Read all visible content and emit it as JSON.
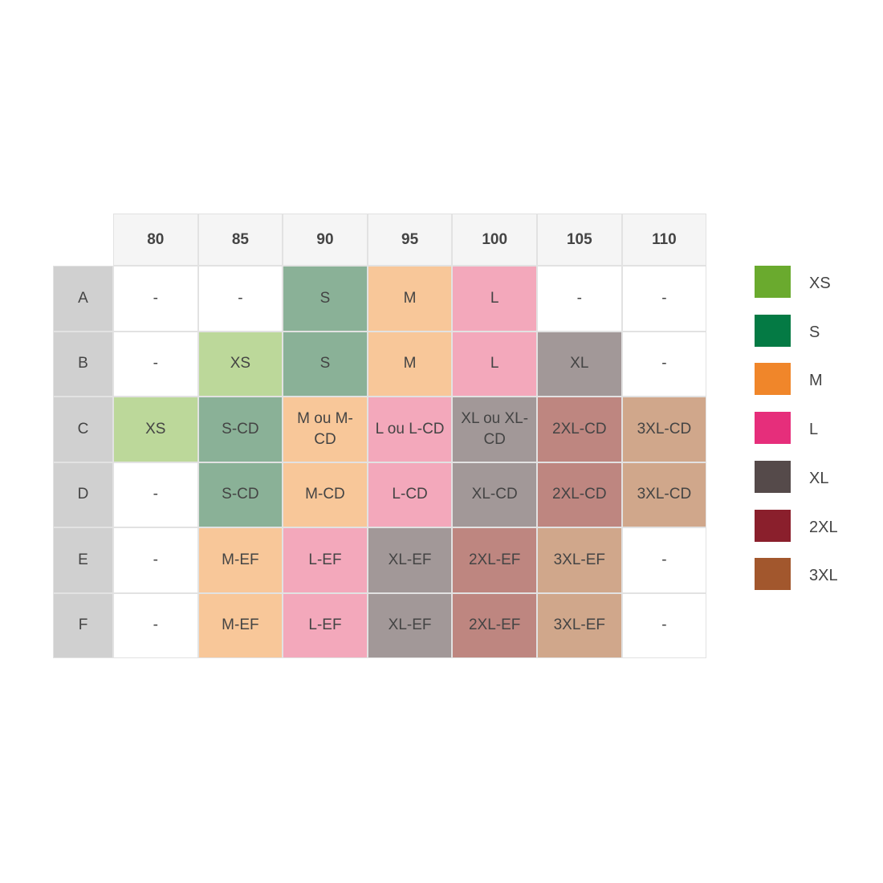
{
  "table": {
    "columns": [
      "80",
      "85",
      "90",
      "95",
      "100",
      "105",
      "110"
    ],
    "rows": [
      {
        "label": "A",
        "cells": [
          {
            "text": "-",
            "color": "#ffffff"
          },
          {
            "text": "-",
            "color": "#ffffff"
          },
          {
            "text": "S",
            "color": "#8ab197"
          },
          {
            "text": "M",
            "color": "#f8c799"
          },
          {
            "text": "L",
            "color": "#f3a8bb"
          },
          {
            "text": "-",
            "color": "#ffffff"
          },
          {
            "text": "-",
            "color": "#ffffff"
          }
        ]
      },
      {
        "label": "B",
        "cells": [
          {
            "text": "-",
            "color": "#ffffff"
          },
          {
            "text": "XS",
            "color": "#bcd89a"
          },
          {
            "text": "S",
            "color": "#8ab197"
          },
          {
            "text": "M",
            "color": "#f8c799"
          },
          {
            "text": "L",
            "color": "#f3a8bb"
          },
          {
            "text": "XL",
            "color": "#a29898"
          },
          {
            "text": "-",
            "color": "#ffffff"
          }
        ]
      },
      {
        "label": "C",
        "cells": [
          {
            "text": "XS",
            "color": "#bcd89a"
          },
          {
            "text": "S-CD",
            "color": "#8ab197"
          },
          {
            "text": "M ou M-CD",
            "color": "#f8c799"
          },
          {
            "text": "L ou L-CD",
            "color": "#f3a8bb"
          },
          {
            "text": "XL ou XL-CD",
            "color": "#a29898"
          },
          {
            "text": "2XL-CD",
            "color": "#be8680"
          },
          {
            "text": "3XL-CD",
            "color": "#d0a78b"
          }
        ]
      },
      {
        "label": "D",
        "cells": [
          {
            "text": "-",
            "color": "#ffffff"
          },
          {
            "text": "S-CD",
            "color": "#8ab197"
          },
          {
            "text": "M-CD",
            "color": "#f8c799"
          },
          {
            "text": "L-CD",
            "color": "#f3a8bb"
          },
          {
            "text": "XL-CD",
            "color": "#a29898"
          },
          {
            "text": "2XL-CD",
            "color": "#be8680"
          },
          {
            "text": "3XL-CD",
            "color": "#d0a78b"
          }
        ]
      },
      {
        "label": "E",
        "cells": [
          {
            "text": "-",
            "color": "#ffffff"
          },
          {
            "text": "M-EF",
            "color": "#f8c799"
          },
          {
            "text": "L-EF",
            "color": "#f3a8bb"
          },
          {
            "text": "XL-EF",
            "color": "#a29898"
          },
          {
            "text": "2XL-EF",
            "color": "#be8680"
          },
          {
            "text": "3XL-EF",
            "color": "#d0a78b"
          },
          {
            "text": "-",
            "color": "#ffffff"
          }
        ]
      },
      {
        "label": "F",
        "cells": [
          {
            "text": "-",
            "color": "#ffffff"
          },
          {
            "text": "M-EF",
            "color": "#f8c799"
          },
          {
            "text": "L-EF",
            "color": "#f3a8bb"
          },
          {
            "text": "XL-EF",
            "color": "#a29898"
          },
          {
            "text": "2XL-EF",
            "color": "#be8680"
          },
          {
            "text": "3XL-EF",
            "color": "#d0a78b"
          },
          {
            "text": "-",
            "color": "#ffffff"
          }
        ]
      }
    ]
  },
  "legend": [
    {
      "label": "XS",
      "color": "#6aaa2e"
    },
    {
      "label": "S",
      "color": "#047a44"
    },
    {
      "label": "M",
      "color": "#f0862a"
    },
    {
      "label": "L",
      "color": "#e62e7b"
    },
    {
      "label": "XL",
      "color": "#554a4a"
    },
    {
      "label": "2XL",
      "color": "#8a1f2c"
    },
    {
      "label": "3XL",
      "color": "#a2572d"
    }
  ]
}
